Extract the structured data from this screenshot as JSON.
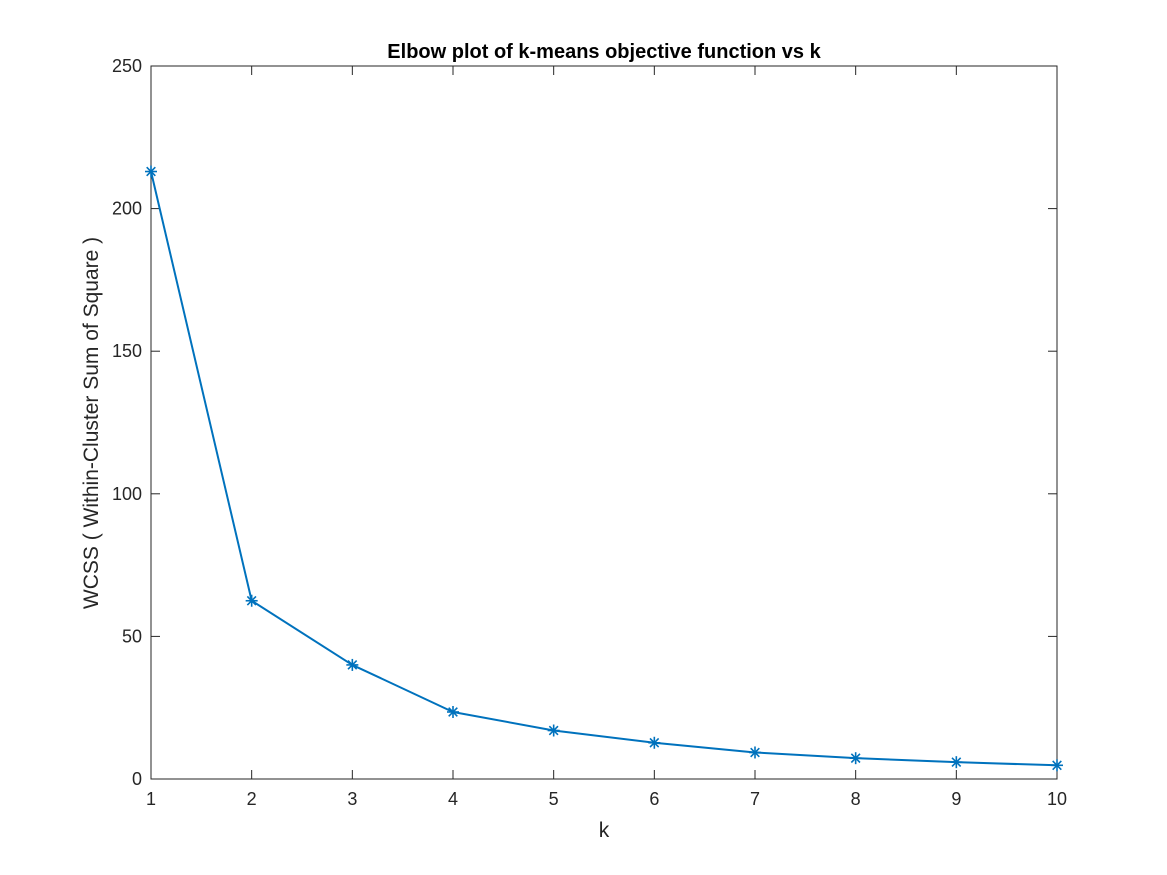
{
  "chart_data": {
    "type": "line",
    "title": "Elbow plot of k-means objective function vs k",
    "xlabel": "k",
    "ylabel": "WCSS ( Within-Cluster Sum of Square )",
    "x": [
      1,
      2,
      3,
      4,
      5,
      6,
      7,
      8,
      9,
      10
    ],
    "series": [
      {
        "values": [
          213.0,
          62.5,
          40.0,
          23.5,
          17.0,
          12.7,
          9.3,
          7.3,
          5.9,
          4.8
        ],
        "color": "#0072BD",
        "marker": "asterisk"
      }
    ],
    "xlim": [
      1,
      10
    ],
    "ylim": [
      0,
      250
    ],
    "xticks": [
      1,
      2,
      3,
      4,
      5,
      6,
      7,
      8,
      9,
      10
    ],
    "yticks": [
      0,
      50,
      100,
      150,
      200,
      250
    ],
    "grid": false,
    "box": true
  }
}
